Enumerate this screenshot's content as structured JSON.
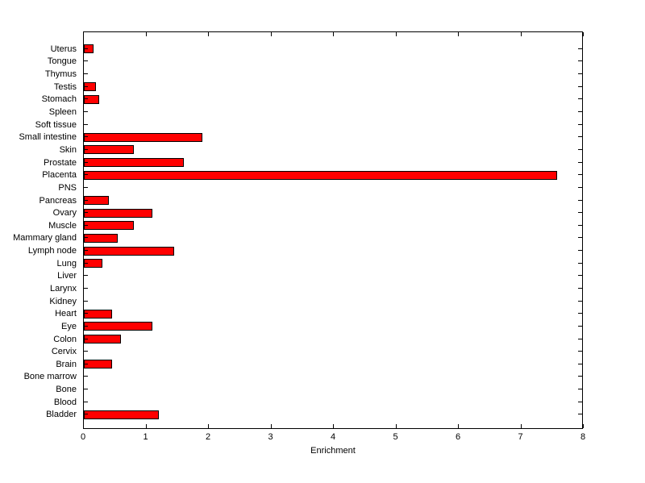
{
  "chart_data": {
    "type": "bar",
    "orientation": "horizontal",
    "title": "",
    "xlabel": "Enrichment",
    "ylabel": "",
    "xlim": [
      0,
      8
    ],
    "xticks": [
      0,
      1,
      2,
      3,
      4,
      5,
      6,
      7,
      8
    ],
    "grid": false,
    "legend": null,
    "box_style": "matlab-box-inward-ticks",
    "categories": [
      "Uterus",
      "Tongue",
      "Thymus",
      "Testis",
      "Stomach",
      "Spleen",
      "Soft tissue",
      "Small intestine",
      "Skin",
      "Prostate",
      "Placenta",
      "PNS",
      "Pancreas",
      "Ovary",
      "Muscle",
      "Mammary gland",
      "Lymph node",
      "Lung",
      "Liver",
      "Larynx",
      "Kidney",
      "Heart",
      "Eye",
      "Colon",
      "Cervix",
      "Brain",
      "Bone marrow",
      "Bone",
      "Blood",
      "Bladder"
    ],
    "values": [
      0.15,
      0,
      0,
      0.2,
      0.25,
      0,
      0,
      1.9,
      0.8,
      1.6,
      7.6,
      0,
      0.4,
      1.1,
      0.8,
      0.55,
      1.45,
      0.3,
      0,
      0,
      0,
      0.45,
      1.1,
      0.6,
      0,
      0.45,
      0,
      0,
      0,
      1.2
    ],
    "colors": {
      "bar_fill": "#ff0000",
      "bar_edge": "#000000",
      "axis": "#000000",
      "background": "#ffffff",
      "text": "#000000"
    }
  }
}
